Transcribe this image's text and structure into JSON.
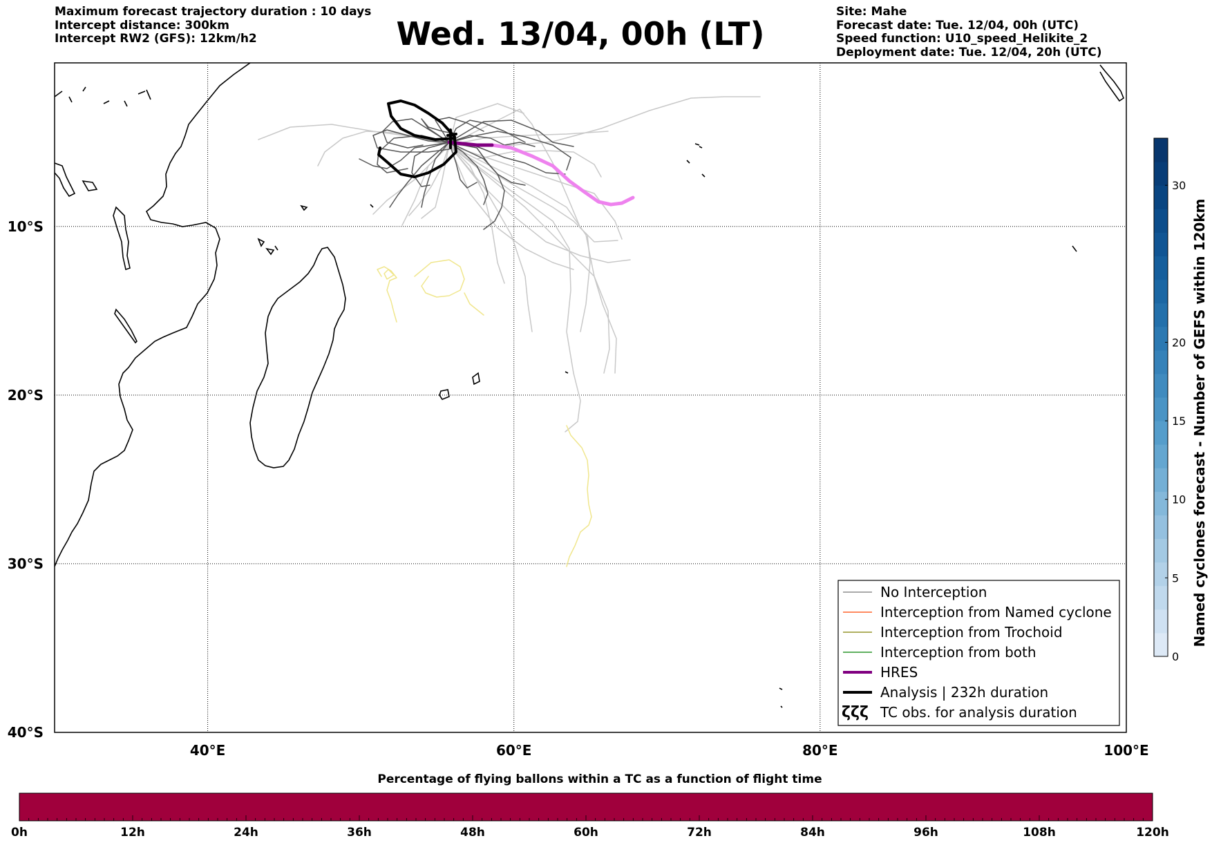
{
  "header": {
    "left": [
      "Maximum forecast trajectory duration : 10 days",
      "Intercept distance: 300km",
      "Intercept RW2 (GFS):  12km/h2"
    ],
    "title": "Wed. 13/04, 00h (LT)",
    "right": [
      "Site: Mahe",
      "Forecast date: Tue. 12/04, 00h (UTC)",
      "Speed function: U10_speed_Helikite_2",
      "Deployment date: Tue. 12/04, 20h (UTC)"
    ]
  },
  "map": {
    "lon_range": [
      30,
      100
    ],
    "lat_range": [
      -40,
      -0.3
    ],
    "lat_ticks": [
      {
        "value": -10,
        "label": "10°S"
      },
      {
        "value": -20,
        "label": "20°S"
      },
      {
        "value": -30,
        "label": "30°S"
      },
      {
        "value": -40,
        "label": "40°S"
      }
    ],
    "lon_ticks": [
      {
        "value": 40,
        "label": "40°E"
      },
      {
        "value": 60,
        "label": "60°E"
      },
      {
        "value": 80,
        "label": "80°E"
      },
      {
        "value": 100,
        "label": "100°E"
      }
    ],
    "grid": true,
    "grid_style": "dotted",
    "colors": {
      "no_interception": "#555555",
      "named_cyclone": "#ff4500",
      "trochoid": "#808000",
      "both": "#008000",
      "hres": "#800080",
      "analysis": "#000000",
      "trochoid_track": "#f0e68c",
      "ensemble_light": "#c8c8c8",
      "hres_tail": "#ee82ee"
    }
  },
  "legend": {
    "items": [
      {
        "label": "No Interception",
        "style": "thin",
        "color": "#777777"
      },
      {
        "label": "Interception from Named cyclone",
        "style": "thin",
        "color": "#ff4500"
      },
      {
        "label": "Interception from Trochoid",
        "style": "thin",
        "color": "#808000"
      },
      {
        "label": "Interception from both",
        "style": "thin",
        "color": "#008000"
      },
      {
        "label": "HRES",
        "style": "thick",
        "color": "#800080"
      },
      {
        "label": "Analysis | 232h duration",
        "style": "thick",
        "color": "#000000"
      },
      {
        "label": "TC obs. for analysis duration",
        "style": "symbol",
        "color": "#000000",
        "symbol": "ζζζ"
      }
    ]
  },
  "colorbar_right": {
    "label": "Named cyclones forecast - Number of GEFS within 120km",
    "range": [
      0,
      33
    ],
    "ticks": [
      0,
      5,
      10,
      15,
      20,
      30
    ],
    "colors": [
      "#dde9f6",
      "#cfe1f2",
      "#c0d9ed",
      "#b2d1e8",
      "#a3c9e3",
      "#94c0df",
      "#84b8da",
      "#74afd5",
      "#64a6d0",
      "#559dcb",
      "#4a94c5",
      "#408bbf",
      "#3682b9",
      "#2c79b2",
      "#2370ab",
      "#1b67a4",
      "#155e9c",
      "#105594",
      "#0c4d8b",
      "#094581",
      "#083d77",
      "#08366d"
    ]
  },
  "colorbar_bottom": {
    "title": "Percentage of flying ballons within a TC as a function of flight time",
    "color": "#a0003c",
    "hour_labels": [
      "0h",
      "12h",
      "24h",
      "36h",
      "48h",
      "60h",
      "72h",
      "84h",
      "96h",
      "108h",
      "120h"
    ]
  }
}
